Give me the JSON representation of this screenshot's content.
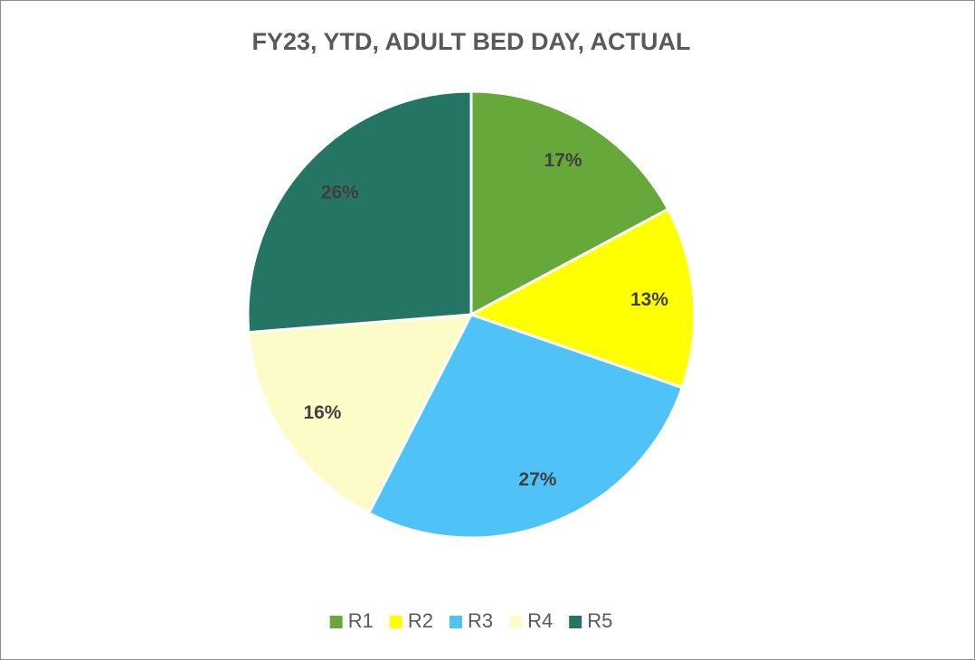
{
  "chart_data": {
    "type": "pie",
    "title": "FY23, YTD, ADULT BED DAY, ACTUAL",
    "categories": [
      "R1",
      "R2",
      "R3",
      "R4",
      "R5"
    ],
    "values": [
      17,
      13,
      27,
      16,
      26
    ],
    "value_labels": [
      "17%",
      "13%",
      "27%",
      "16%",
      "26%"
    ],
    "colors": [
      "#66a839",
      "#ffff00",
      "#4fc3f7",
      "#fdfcc8",
      "#247563"
    ],
    "legend": "bottom"
  }
}
